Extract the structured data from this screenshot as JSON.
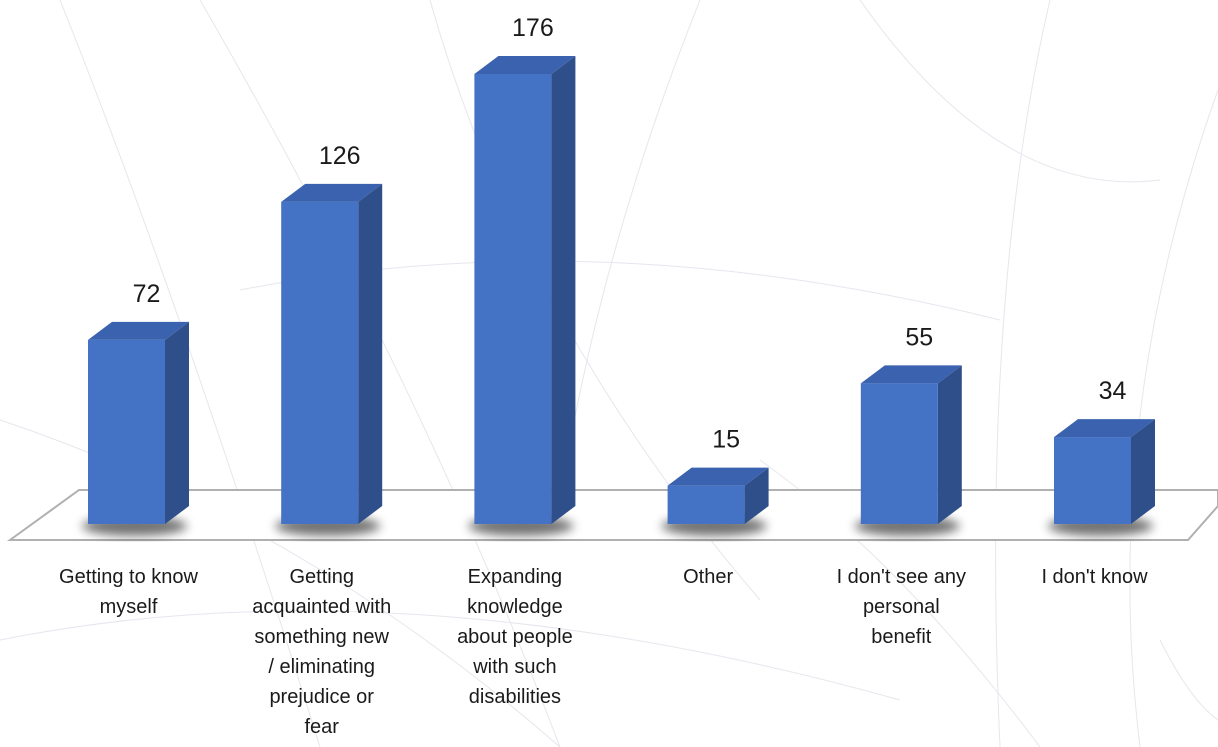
{
  "chart_data": {
    "type": "bar",
    "title": "",
    "xlabel": "",
    "ylabel": "",
    "categories": [
      [
        "Getting to know",
        "myself"
      ],
      [
        "Getting",
        "acquainted with",
        "something new",
        "/ eliminating",
        "prejudice or",
        "fear"
      ],
      [
        "Expanding",
        "knowledge",
        "about people",
        "with such",
        "disabilities"
      ],
      [
        "Other"
      ],
      [
        "I don't see any",
        "personal",
        "benefit"
      ],
      [
        "I don't know"
      ]
    ],
    "values": [
      72,
      126,
      176,
      15,
      55,
      34
    ],
    "ylim": [
      0,
      176
    ],
    "grid": false,
    "legend": "none",
    "colors": {
      "bar_front": "#4472C4",
      "bar_side": "#2F4F8A",
      "bar_top": "#3A62AE",
      "floor_stroke": "#b0b0b0",
      "background_lines": "#e6e6ee"
    }
  }
}
